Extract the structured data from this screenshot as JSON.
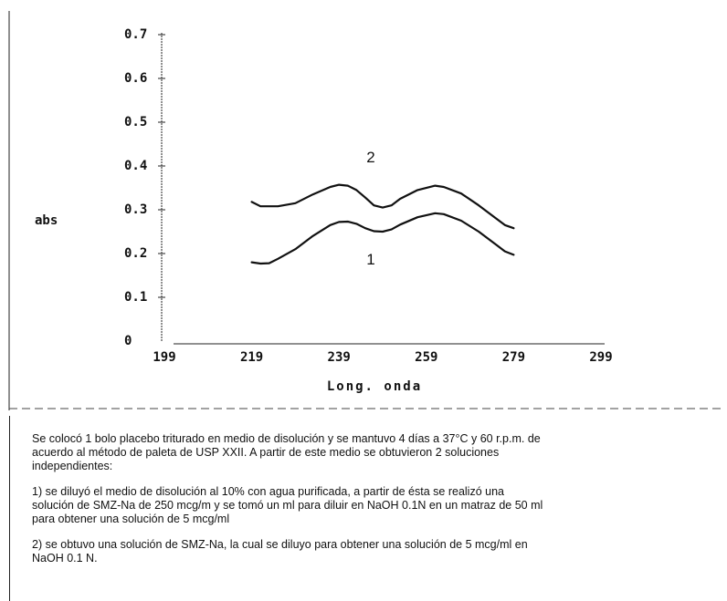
{
  "chart_data": {
    "type": "line",
    "title": "",
    "xlabel": "Long. onda",
    "ylabel": "abs",
    "xlim": [
      199,
      299
    ],
    "ylim": [
      0,
      0.7
    ],
    "x_ticks": [
      "199",
      "219",
      "239",
      "259",
      "279",
      "299"
    ],
    "y_ticks": [
      "0",
      "0.1",
      "0.2",
      "0.3",
      "0.4",
      "0.5",
      "0.6",
      "0.7"
    ],
    "grid": false,
    "series": [
      {
        "name": "1",
        "color": "#111111",
        "x": [
          219,
          221,
          223,
          225,
          229,
          233,
          237,
          239,
          241,
          243,
          245,
          247,
          249,
          251,
          253,
          257,
          261,
          263,
          267,
          271,
          275,
          277,
          279
        ],
        "y": [
          0.18,
          0.177,
          0.178,
          0.188,
          0.21,
          0.24,
          0.265,
          0.272,
          0.273,
          0.268,
          0.258,
          0.251,
          0.25,
          0.255,
          0.266,
          0.283,
          0.292,
          0.29,
          0.275,
          0.25,
          0.22,
          0.205,
          0.197
        ]
      },
      {
        "name": "2",
        "color": "#111111",
        "x": [
          219,
          221,
          223,
          225,
          229,
          233,
          237,
          239,
          241,
          243,
          245,
          247,
          249,
          251,
          253,
          257,
          261,
          263,
          267,
          271,
          275,
          277,
          279
        ],
        "y": [
          0.318,
          0.308,
          0.308,
          0.308,
          0.315,
          0.335,
          0.352,
          0.357,
          0.355,
          0.345,
          0.328,
          0.31,
          0.305,
          0.31,
          0.325,
          0.345,
          0.355,
          0.352,
          0.337,
          0.31,
          0.28,
          0.265,
          0.258
        ]
      }
    ]
  },
  "notes": {
    "para1": "Se colocó 1 bolo placebo triturado en medio de disolución y se mantuvo 4 días a 37°C y 60 r.p.m. de acuerdo al método de paleta de USP XXII. A partir de este medio se obtuvieron 2 soluciones  independientes:",
    "para2": "1) se diluyó el  medio de disolución al 10% con agua purificada, a partir de ésta se realizó una solución de SMZ-Na de 250 mcg/m y se tomó un ml para diluir en NaOH 0.1N en un matraz de 50 ml para obtener una solución de 5 mcg/ml",
    "para3": "2) se obtuvo una solución de SMZ-Na, la cual se diluyo para obtener una solución de 5 mcg/ml en NaOH 0.1 N."
  }
}
